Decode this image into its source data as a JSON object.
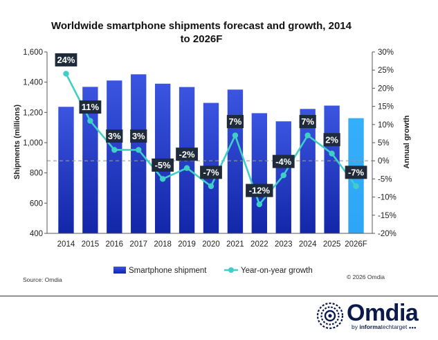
{
  "chart_data": {
    "type": "bar+line",
    "title": "Worldwide smartphone shipments forecast and growth, 2014 to 2026F",
    "title_lines": [
      "Worldwide smartphone shipments forecast and growth, 2014",
      "to 2026F"
    ],
    "categories": [
      "2014",
      "2015",
      "2016",
      "2017",
      "2018",
      "2019",
      "2020",
      "2021",
      "2022",
      "2023",
      "2024",
      "2025",
      "2026F"
    ],
    "series": [
      {
        "name": "Smartphone shipment",
        "kind": "bar",
        "axis": "left",
        "values": [
          1237,
          1369,
          1411,
          1452,
          1390,
          1368,
          1263,
          1351,
          1195,
          1141,
          1223,
          1245,
          1162
        ]
      },
      {
        "name": "Year-on-year growth",
        "kind": "line",
        "axis": "right",
        "values": [
          24,
          11,
          3,
          3,
          -5,
          -2,
          -7,
          7,
          -12,
          -4,
          7,
          2,
          -7
        ],
        "labels": [
          "24%",
          "11%",
          "3%",
          "3%",
          "-5%",
          "-2%",
          "-7%",
          "7%",
          "-12%",
          "-4%",
          "7%",
          "2%",
          "-7%"
        ]
      }
    ],
    "ylabel": "Shipments (millions)",
    "ylim": [
      400,
      1600
    ],
    "yticks": [
      "400",
      "600",
      "800",
      "1,000",
      "1,200",
      "1,400",
      "1,600"
    ],
    "y2label": "Annual growth",
    "y2lim": [
      -20,
      30
    ],
    "y2ticks": [
      "-20%",
      "-15%",
      "-10%",
      "-5%",
      "0%",
      "5%",
      "10%",
      "15%",
      "20%",
      "25%",
      "30%"
    ],
    "zero_line_style": "dashed",
    "legend_position": "bottom"
  },
  "colors": {
    "bar_dark": "#1226a8",
    "bar_light": "#3b55e0",
    "bar_forecast": "#35aefb",
    "line": "#3fcfc6",
    "label_bg": "#1f2b3a",
    "brand": "#0b1a4a"
  },
  "footer": {
    "source": "Source: Omdia",
    "copyright": "© 2026 Omdia"
  },
  "logo": {
    "name": "Omdia",
    "sub_prefix": "by ",
    "sub_bold": "informa",
    "sub_rest": "techtarget"
  }
}
